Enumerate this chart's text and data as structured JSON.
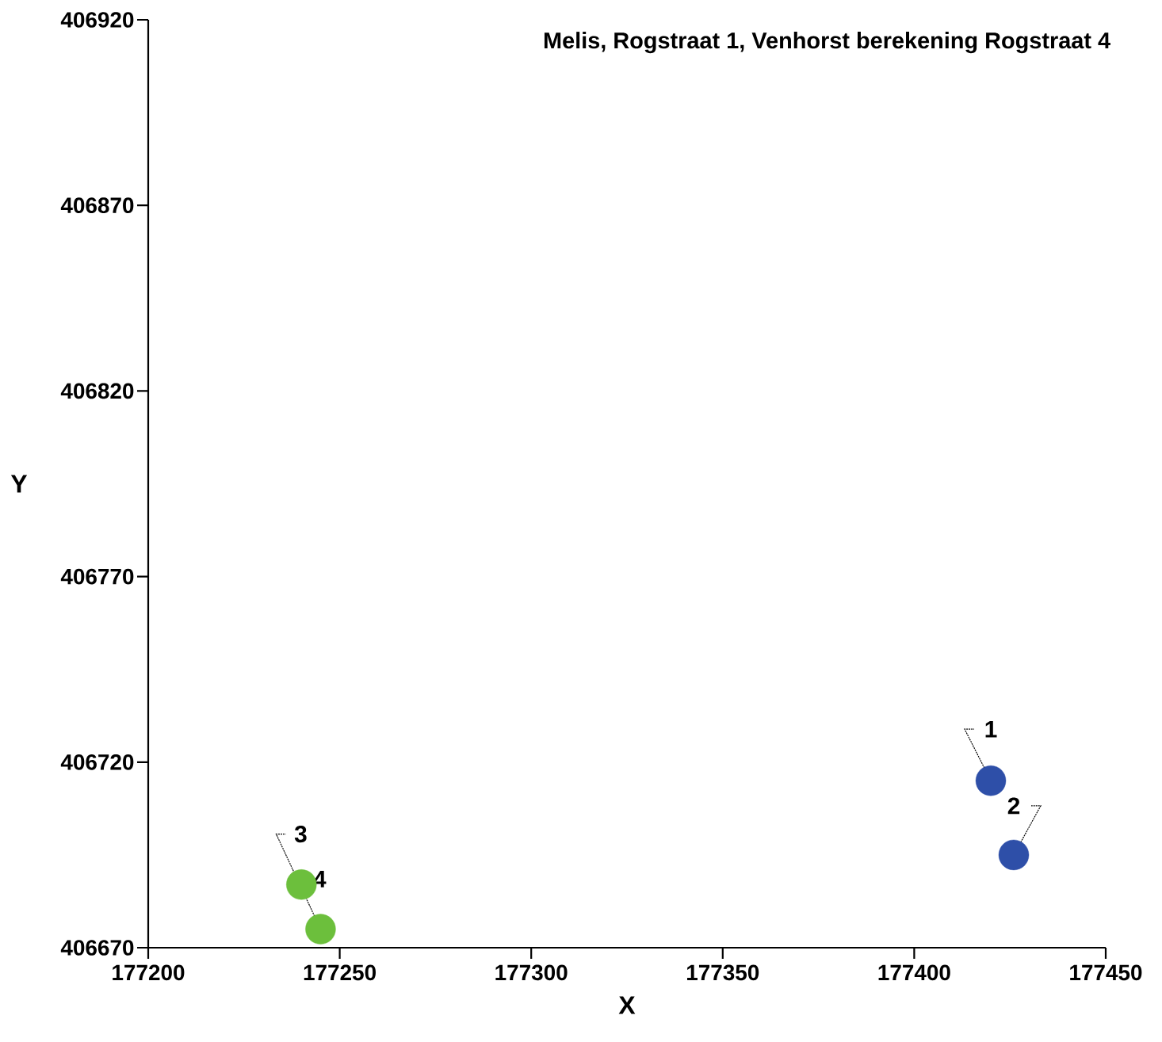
{
  "chart_data": {
    "type": "scatter",
    "title": "Melis, Rogstraat 1, Venhorst berekening Rogstraat 4",
    "xlabel": "X",
    "ylabel": "Y",
    "series": [
      {
        "color": "#2e4fa8",
        "x": [
          177420,
          177426
        ],
        "values": [
          406715,
          406695
        ]
      },
      {
        "color": "#6cbf3c",
        "x": [
          177245,
          177240
        ],
        "values": [
          406675,
          406687
        ]
      }
    ],
    "annotations": [
      {
        "text": "1",
        "x": 177420,
        "y": 406715
      },
      {
        "text": "2",
        "x": 177426,
        "y": 406695
      },
      {
        "text": "3",
        "x": 177245,
        "y": 406675
      },
      {
        "text": "4",
        "x": 177240,
        "y": 406687
      }
    ],
    "xlim": [
      177200,
      177450
    ],
    "xticks": [
      177200,
      177250,
      177300,
      177350,
      177400,
      177450
    ],
    "ylim": [
      406670,
      406920
    ],
    "yticks": [
      406670,
      406720,
      406770,
      406820,
      406870,
      406920
    ]
  }
}
